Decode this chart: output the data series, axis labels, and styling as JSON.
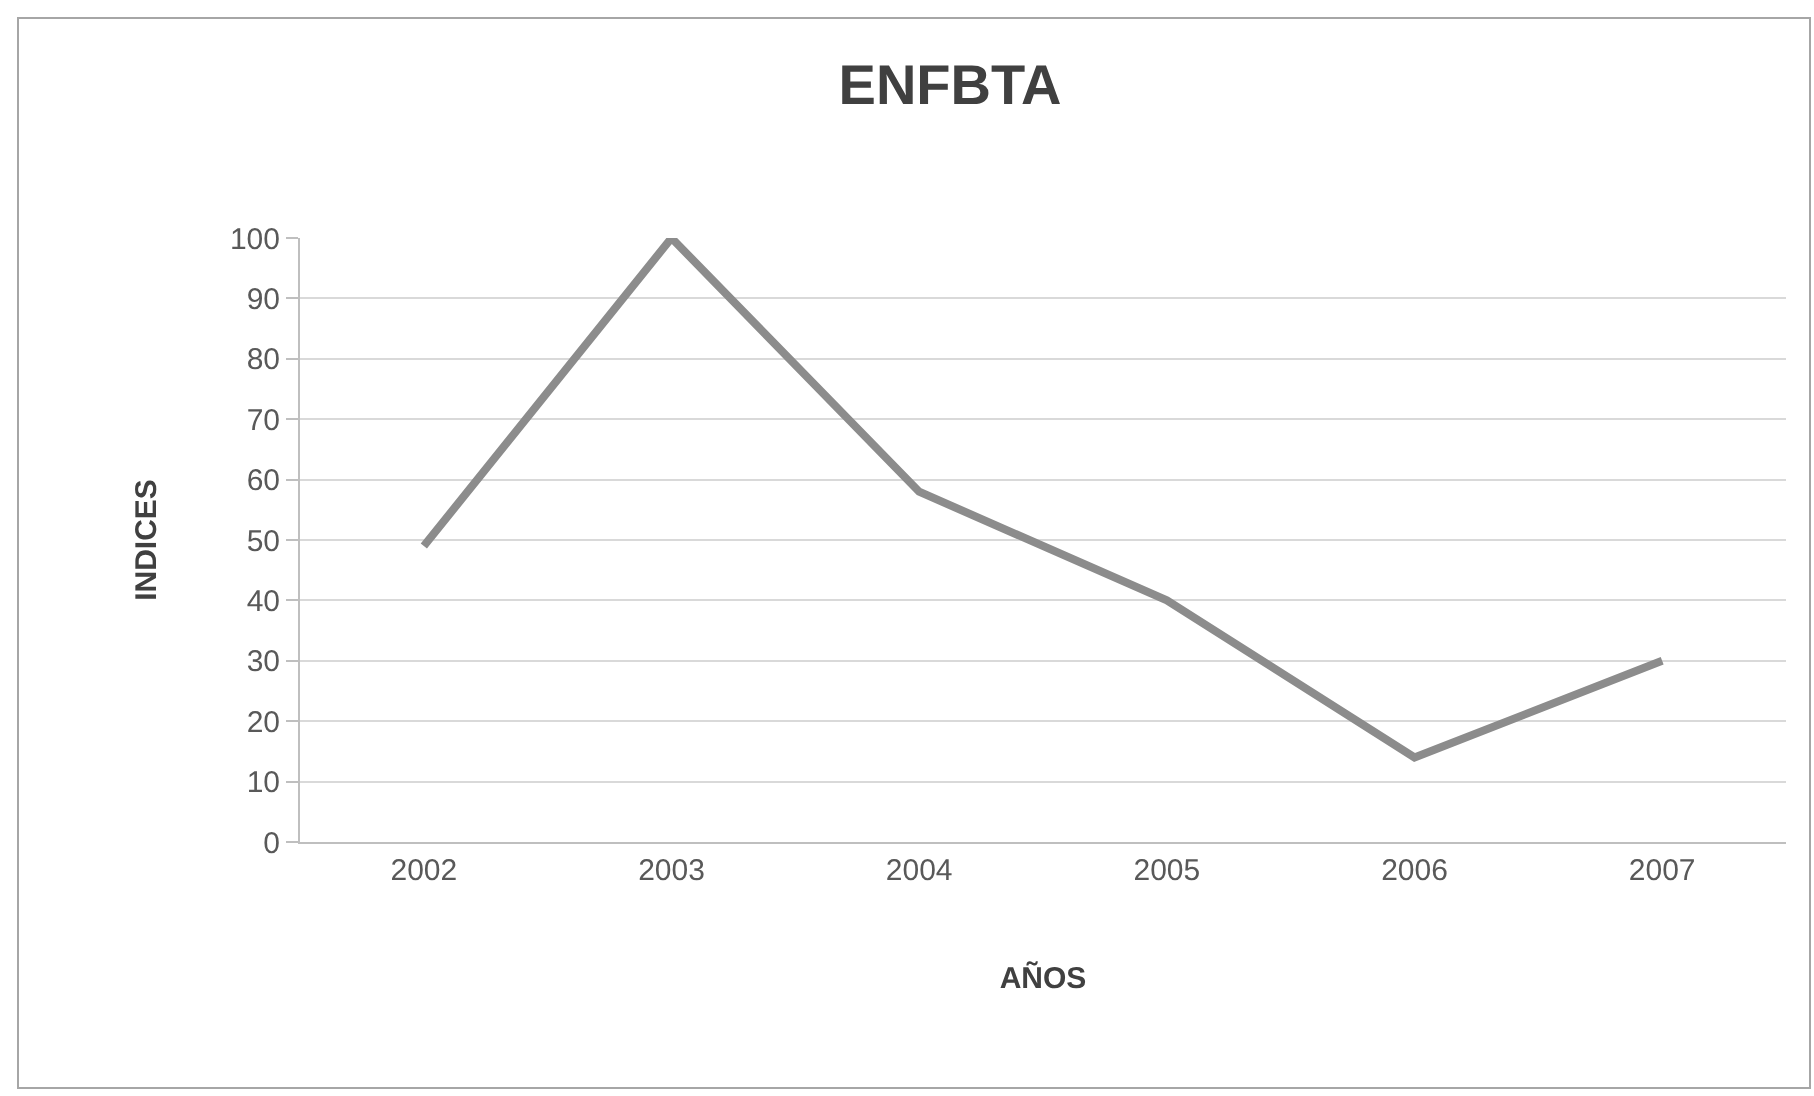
{
  "chart_data": {
    "type": "line",
    "title": "ENFBTA",
    "xlabel": "AÑOS",
    "ylabel": "INDICES",
    "categories": [
      "2002",
      "2003",
      "2004",
      "2005",
      "2006",
      "2007"
    ],
    "series": [
      {
        "color": "#8c8c8c",
        "values": [
          49,
          100,
          58,
          40,
          14,
          30
        ]
      }
    ],
    "ylim": [
      0,
      100
    ],
    "yticks": [
      0,
      10,
      20,
      30,
      40,
      50,
      60,
      70,
      80,
      90,
      100
    ],
    "grid": "y",
    "marker": "none",
    "line_style": "solid"
  }
}
